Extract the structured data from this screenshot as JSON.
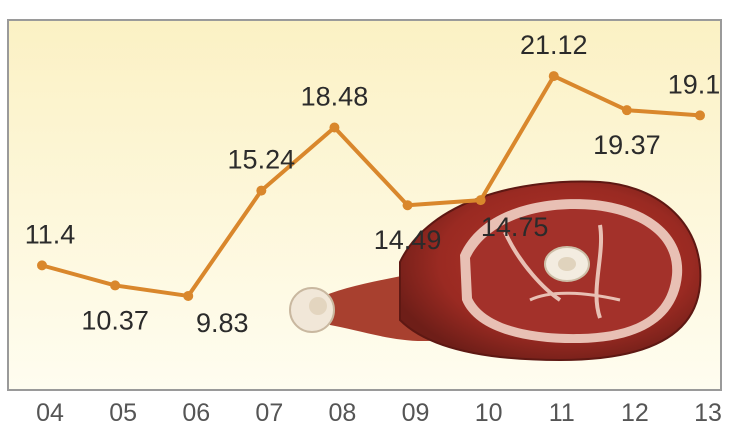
{
  "chart_data": {
    "type": "line",
    "categories": [
      "04",
      "05",
      "06",
      "07",
      "08",
      "09",
      "10",
      "11",
      "12",
      "13"
    ],
    "values": [
      11.4,
      10.37,
      9.83,
      15.24,
      18.48,
      14.49,
      14.75,
      21.12,
      19.37,
      19.1
    ],
    "data_labels": [
      "11.4",
      "10.37",
      "9.83",
      "15.24",
      "18.48",
      "14.49",
      "14.75",
      "21.12",
      "19.37",
      "19.1"
    ],
    "title": "",
    "xlabel": "",
    "ylabel": "",
    "ylim": [
      5,
      24
    ],
    "grid": false,
    "legend": "none",
    "colors": {
      "line": "#d9872c",
      "plot_bg_top": "#fbf1c4",
      "plot_bg_bottom": "#fffdf0",
      "frame": "#9a9a9a",
      "label_text": "#2b2b2b",
      "tick_text": "#555555"
    },
    "decoration": "ham-leg-illustration"
  }
}
